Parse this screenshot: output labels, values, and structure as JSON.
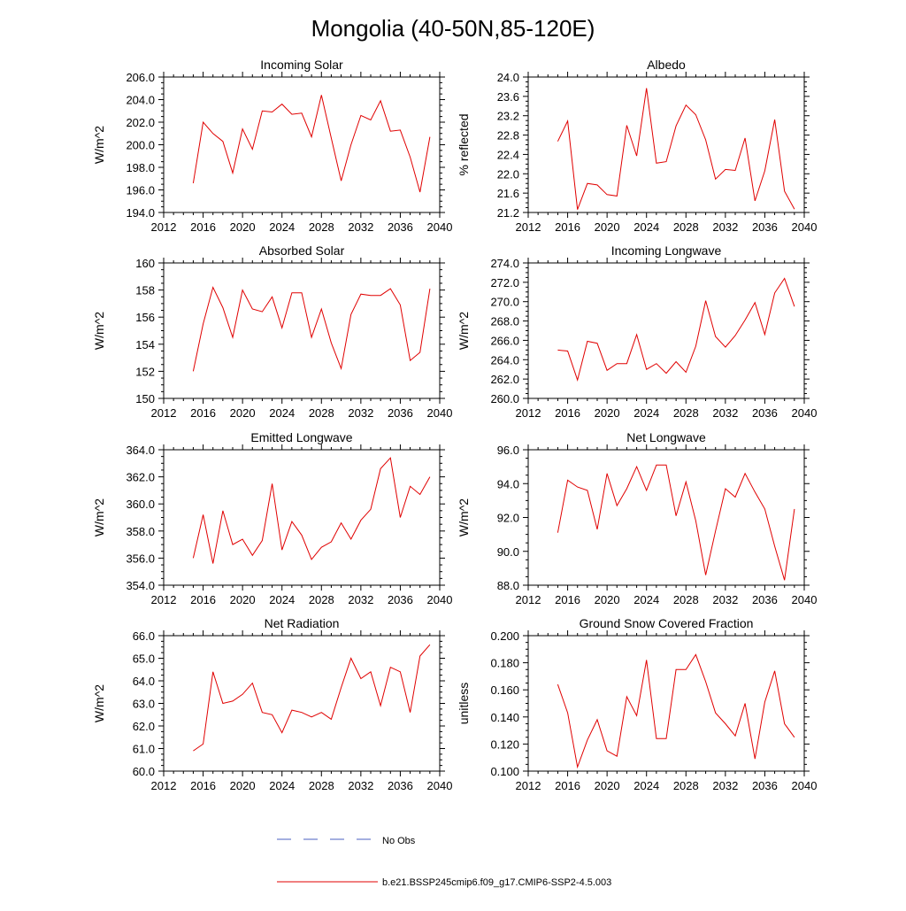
{
  "page": {
    "title": "Mongolia (40-50N,85-120E)"
  },
  "legend": {
    "obs_label": "No Obs",
    "obs_color": "#4a5fc1",
    "model_label": "b.e21.BSSP245cmip6.f09_g17.CMIP6-SSP2-4.5.003",
    "model_color": "#e00000"
  },
  "chart_data": [
    {
      "type": "line",
      "title": "Incoming Solar",
      "ylabel": "W/m^2",
      "xlim": [
        2012,
        2040
      ],
      "ylim": [
        194,
        206
      ],
      "xticks": [
        2012,
        2016,
        2020,
        2024,
        2028,
        2032,
        2036,
        2040
      ],
      "yticks": [
        "194.0",
        "196.0",
        "198.0",
        "200.0",
        "202.0",
        "204.0",
        "206.0"
      ],
      "x": [
        2015,
        2016,
        2017,
        2018,
        2019,
        2020,
        2021,
        2022,
        2023,
        2024,
        2025,
        2026,
        2027,
        2028,
        2029,
        2030,
        2031,
        2032,
        2033,
        2034,
        2035,
        2036,
        2037,
        2038,
        2039
      ],
      "values": [
        196.6,
        202.0,
        201.0,
        200.3,
        197.5,
        201.4,
        199.6,
        203.0,
        202.9,
        203.6,
        202.7,
        202.8,
        200.7,
        204.4,
        200.6,
        196.8,
        200.0,
        202.6,
        202.2,
        203.9,
        201.2,
        201.3,
        198.9,
        195.8,
        200.7
      ]
    },
    {
      "type": "line",
      "title": "Albedo",
      "ylabel": "% reflected",
      "xlim": [
        2012,
        2040
      ],
      "ylim": [
        21.2,
        24.0
      ],
      "xticks": [
        2012,
        2016,
        2020,
        2024,
        2028,
        2032,
        2036,
        2040
      ],
      "yticks": [
        "21.2",
        "21.6",
        "22.0",
        "22.4",
        "22.8",
        "23.2",
        "23.6",
        "24.0"
      ],
      "x": [
        2015,
        2016,
        2017,
        2018,
        2019,
        2020,
        2021,
        2022,
        2023,
        2024,
        2025,
        2026,
        2027,
        2028,
        2029,
        2030,
        2031,
        2032,
        2033,
        2034,
        2035,
        2036,
        2037,
        2038,
        2039
      ],
      "values": [
        22.67,
        23.09,
        21.26,
        21.8,
        21.77,
        21.57,
        21.54,
        23.0,
        22.37,
        23.77,
        22.22,
        22.25,
        22.99,
        23.42,
        23.22,
        22.7,
        21.89,
        22.09,
        22.07,
        22.74,
        21.44,
        22.06,
        23.12,
        21.64,
        21.27
      ]
    },
    {
      "type": "line",
      "title": "Absorbed Solar",
      "ylabel": "W/m^2",
      "xlim": [
        2012,
        2040
      ],
      "ylim": [
        150,
        160
      ],
      "xticks": [
        2012,
        2016,
        2020,
        2024,
        2028,
        2032,
        2036,
        2040
      ],
      "yticks": [
        "150",
        "152",
        "154",
        "156",
        "158",
        "160"
      ],
      "x": [
        2015,
        2016,
        2017,
        2018,
        2019,
        2020,
        2021,
        2022,
        2023,
        2024,
        2025,
        2026,
        2027,
        2028,
        2029,
        2030,
        2031,
        2032,
        2033,
        2034,
        2035,
        2036,
        2037,
        2038,
        2039
      ],
      "values": [
        152.0,
        155.5,
        158.2,
        156.7,
        154.5,
        158.0,
        156.6,
        156.4,
        157.5,
        155.2,
        157.8,
        157.8,
        154.5,
        156.6,
        154.1,
        152.2,
        156.2,
        157.7,
        157.6,
        157.6,
        158.1,
        156.9,
        152.8,
        153.4,
        158.1
      ]
    },
    {
      "type": "line",
      "title": "Incoming Longwave",
      "ylabel": "W/m^2",
      "xlim": [
        2012,
        2040
      ],
      "ylim": [
        260,
        274
      ],
      "xticks": [
        2012,
        2016,
        2020,
        2024,
        2028,
        2032,
        2036,
        2040
      ],
      "yticks": [
        "260.0",
        "262.0",
        "264.0",
        "266.0",
        "268.0",
        "270.0",
        "272.0",
        "274.0"
      ],
      "x": [
        2015,
        2016,
        2017,
        2018,
        2019,
        2020,
        2021,
        2022,
        2023,
        2024,
        2025,
        2026,
        2027,
        2028,
        2029,
        2030,
        2031,
        2032,
        2033,
        2034,
        2035,
        2036,
        2037,
        2038,
        2039
      ],
      "values": [
        265.0,
        264.9,
        261.9,
        265.9,
        265.7,
        262.9,
        263.6,
        263.6,
        266.6,
        263.0,
        263.6,
        262.6,
        263.8,
        262.7,
        265.4,
        270.1,
        266.4,
        265.3,
        266.5,
        268.1,
        269.9,
        266.6,
        270.9,
        272.4,
        269.5
      ]
    },
    {
      "type": "line",
      "title": "Emitted Longwave",
      "ylabel": "W/m^2",
      "xlim": [
        2012,
        2040
      ],
      "ylim": [
        354,
        364
      ],
      "xticks": [
        2012,
        2016,
        2020,
        2024,
        2028,
        2032,
        2036,
        2040
      ],
      "yticks": [
        "354.0",
        "356.0",
        "358.0",
        "360.0",
        "362.0",
        "364.0"
      ],
      "x": [
        2015,
        2016,
        2017,
        2018,
        2019,
        2020,
        2021,
        2022,
        2023,
        2024,
        2025,
        2026,
        2027,
        2028,
        2029,
        2030,
        2031,
        2032,
        2033,
        2034,
        2035,
        2036,
        2037,
        2038,
        2039
      ],
      "values": [
        356.0,
        359.2,
        355.6,
        359.5,
        357.0,
        357.4,
        356.2,
        357.3,
        361.5,
        356.6,
        358.7,
        357.7,
        355.9,
        356.8,
        357.2,
        358.6,
        357.4,
        358.8,
        359.6,
        362.6,
        363.4,
        359.0,
        361.3,
        360.7,
        362.0
      ]
    },
    {
      "type": "line",
      "title": "Net Longwave",
      "ylabel": "W/m^2",
      "xlim": [
        2012,
        2040
      ],
      "ylim": [
        88,
        96
      ],
      "xticks": [
        2012,
        2016,
        2020,
        2024,
        2028,
        2032,
        2036,
        2040
      ],
      "yticks": [
        "88.0",
        "90.0",
        "92.0",
        "94.0",
        "96.0"
      ],
      "x": [
        2015,
        2016,
        2017,
        2018,
        2019,
        2020,
        2021,
        2022,
        2023,
        2024,
        2025,
        2026,
        2027,
        2028,
        2029,
        2030,
        2031,
        2032,
        2033,
        2034,
        2035,
        2036,
        2037,
        2038,
        2039
      ],
      "values": [
        91.1,
        94.2,
        93.8,
        93.6,
        91.3,
        94.6,
        92.7,
        93.7,
        95.0,
        93.6,
        95.1,
        95.1,
        92.1,
        94.1,
        91.8,
        88.6,
        91.2,
        93.7,
        93.2,
        94.6,
        93.5,
        92.5,
        90.3,
        88.3,
        92.5
      ]
    },
    {
      "type": "line",
      "title": "Net Radiation",
      "ylabel": "W/m^2",
      "xlim": [
        2012,
        2040
      ],
      "ylim": [
        60,
        66
      ],
      "xticks": [
        2012,
        2016,
        2020,
        2024,
        2028,
        2032,
        2036,
        2040
      ],
      "yticks": [
        "60.0",
        "61.0",
        "62.0",
        "63.0",
        "64.0",
        "65.0",
        "66.0"
      ],
      "x": [
        2015,
        2016,
        2017,
        2018,
        2019,
        2020,
        2021,
        2022,
        2023,
        2024,
        2025,
        2026,
        2027,
        2028,
        2029,
        2030,
        2031,
        2032,
        2033,
        2034,
        2035,
        2036,
        2037,
        2038,
        2039
      ],
      "values": [
        60.9,
        61.2,
        64.4,
        63.0,
        63.1,
        63.4,
        63.9,
        62.6,
        62.5,
        61.7,
        62.7,
        62.6,
        62.4,
        62.6,
        62.3,
        63.7,
        65.0,
        64.1,
        64.4,
        62.9,
        64.6,
        64.4,
        62.6,
        65.1,
        65.6
      ]
    },
    {
      "type": "line",
      "title": "Ground Snow Covered Fraction",
      "ylabel": "unitless",
      "xlim": [
        2012,
        2040
      ],
      "ylim": [
        0.1,
        0.2
      ],
      "xticks": [
        2012,
        2016,
        2020,
        2024,
        2028,
        2032,
        2036,
        2040
      ],
      "yticks": [
        "0.100",
        "0.120",
        "0.140",
        "0.160",
        "0.180",
        "0.200"
      ],
      "x": [
        2015,
        2016,
        2017,
        2018,
        2019,
        2020,
        2021,
        2022,
        2023,
        2024,
        2025,
        2026,
        2027,
        2028,
        2029,
        2030,
        2031,
        2032,
        2033,
        2034,
        2035,
        2036,
        2037,
        2038,
        2039
      ],
      "values": [
        0.164,
        0.143,
        0.103,
        0.123,
        0.138,
        0.115,
        0.111,
        0.155,
        0.141,
        0.182,
        0.124,
        0.124,
        0.175,
        0.175,
        0.186,
        0.166,
        0.143,
        0.135,
        0.126,
        0.15,
        0.109,
        0.151,
        0.174,
        0.135,
        0.125
      ]
    }
  ]
}
